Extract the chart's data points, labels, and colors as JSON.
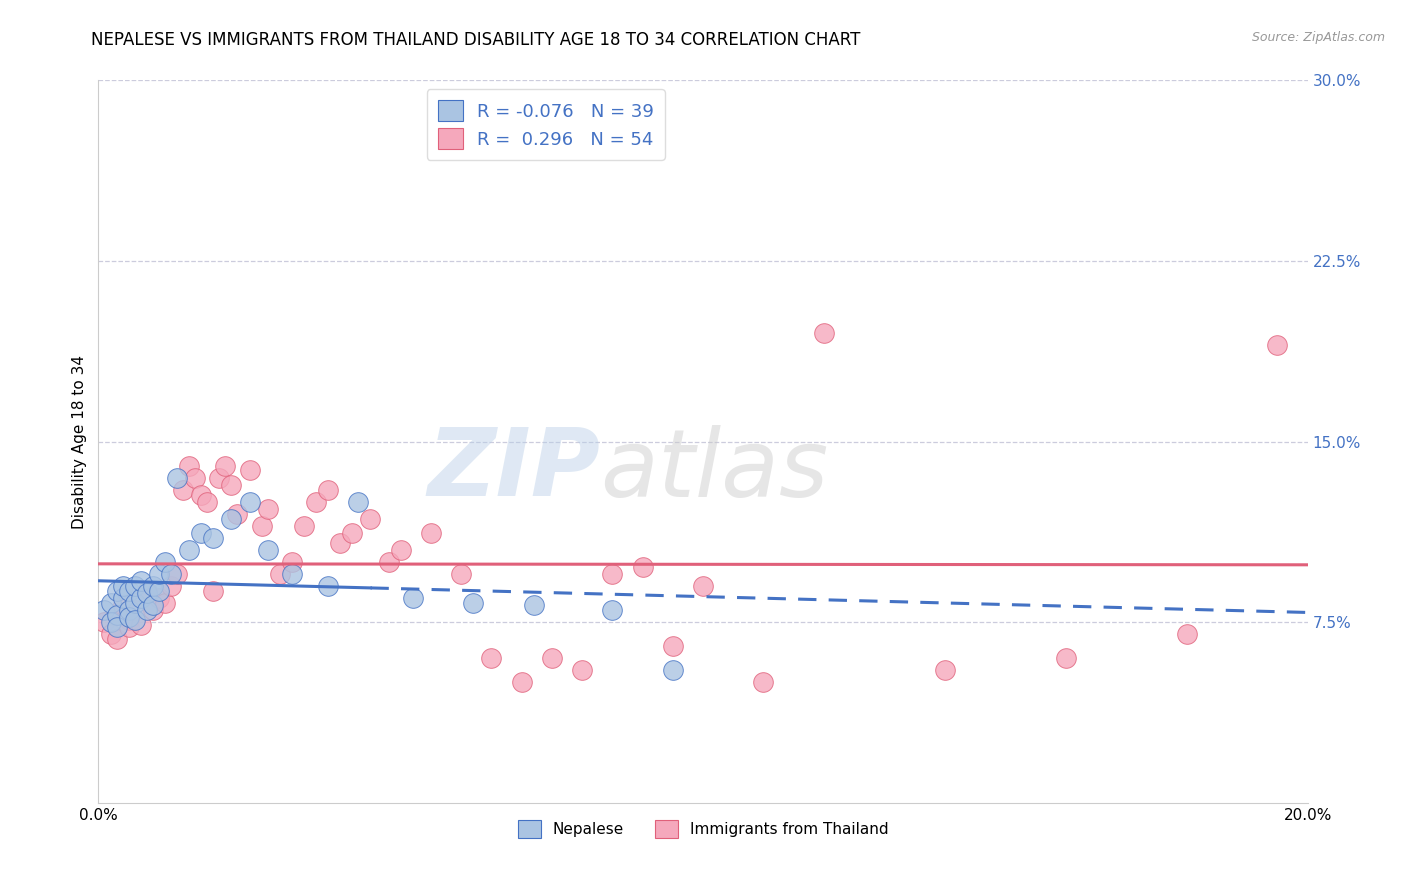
{
  "title": "NEPALESE VS IMMIGRANTS FROM THAILAND DISABILITY AGE 18 TO 34 CORRELATION CHART",
  "source": "Source: ZipAtlas.com",
  "ylabel": "Disability Age 18 to 34",
  "xlim": [
    0.0,
    0.2
  ],
  "ylim": [
    0.0,
    0.3
  ],
  "yticks": [
    0.075,
    0.15,
    0.225,
    0.3
  ],
  "ytick_labels": [
    "7.5%",
    "15.0%",
    "22.5%",
    "30.0%"
  ],
  "xticks": [
    0.0,
    0.04,
    0.08,
    0.12,
    0.16,
    0.2
  ],
  "xtick_labels": [
    "0.0%",
    "",
    "",
    "",
    "",
    "20.0%"
  ],
  "nepalese_color": "#aac4e2",
  "thailand_color": "#f5a8bc",
  "nepalese_line_color": "#4472c4",
  "thailand_line_color": "#e0607a",
  "r_nepalese": -0.076,
  "n_nepalese": 39,
  "r_thailand": 0.296,
  "n_thailand": 54,
  "nepalese_x": [
    0.001,
    0.002,
    0.002,
    0.003,
    0.003,
    0.003,
    0.004,
    0.004,
    0.005,
    0.005,
    0.005,
    0.006,
    0.006,
    0.006,
    0.007,
    0.007,
    0.008,
    0.008,
    0.009,
    0.009,
    0.01,
    0.01,
    0.011,
    0.012,
    0.013,
    0.015,
    0.017,
    0.019,
    0.022,
    0.025,
    0.028,
    0.032,
    0.038,
    0.043,
    0.052,
    0.062,
    0.072,
    0.085,
    0.095
  ],
  "nepalese_y": [
    0.08,
    0.083,
    0.075,
    0.088,
    0.078,
    0.073,
    0.085,
    0.09,
    0.08,
    0.088,
    0.077,
    0.083,
    0.09,
    0.076,
    0.085,
    0.092,
    0.08,
    0.087,
    0.082,
    0.09,
    0.088,
    0.095,
    0.1,
    0.095,
    0.135,
    0.105,
    0.112,
    0.11,
    0.118,
    0.125,
    0.105,
    0.095,
    0.09,
    0.125,
    0.085,
    0.083,
    0.082,
    0.08,
    0.055
  ],
  "thailand_x": [
    0.001,
    0.002,
    0.003,
    0.003,
    0.004,
    0.005,
    0.005,
    0.006,
    0.007,
    0.008,
    0.009,
    0.01,
    0.011,
    0.012,
    0.013,
    0.014,
    0.015,
    0.016,
    0.017,
    0.018,
    0.019,
    0.02,
    0.021,
    0.022,
    0.023,
    0.025,
    0.027,
    0.028,
    0.03,
    0.032,
    0.034,
    0.036,
    0.038,
    0.04,
    0.042,
    0.045,
    0.048,
    0.05,
    0.055,
    0.06,
    0.065,
    0.07,
    0.075,
    0.08,
    0.085,
    0.09,
    0.095,
    0.1,
    0.11,
    0.12,
    0.14,
    0.16,
    0.18,
    0.195
  ],
  "thailand_y": [
    0.075,
    0.07,
    0.068,
    0.078,
    0.082,
    0.076,
    0.073,
    0.08,
    0.074,
    0.088,
    0.08,
    0.085,
    0.083,
    0.09,
    0.095,
    0.13,
    0.14,
    0.135,
    0.128,
    0.125,
    0.088,
    0.135,
    0.14,
    0.132,
    0.12,
    0.138,
    0.115,
    0.122,
    0.095,
    0.1,
    0.115,
    0.125,
    0.13,
    0.108,
    0.112,
    0.118,
    0.1,
    0.105,
    0.112,
    0.095,
    0.06,
    0.05,
    0.06,
    0.055,
    0.095,
    0.098,
    0.065,
    0.09,
    0.05,
    0.195,
    0.055,
    0.06,
    0.07,
    0.19
  ],
  "watermark_zip": "ZIP",
  "watermark_atlas": "atlas",
  "background_color": "#ffffff",
  "grid_color": "#ccccdd",
  "title_fontsize": 12,
  "label_fontsize": 11,
  "tick_fontsize": 11,
  "legend_fontsize": 13
}
